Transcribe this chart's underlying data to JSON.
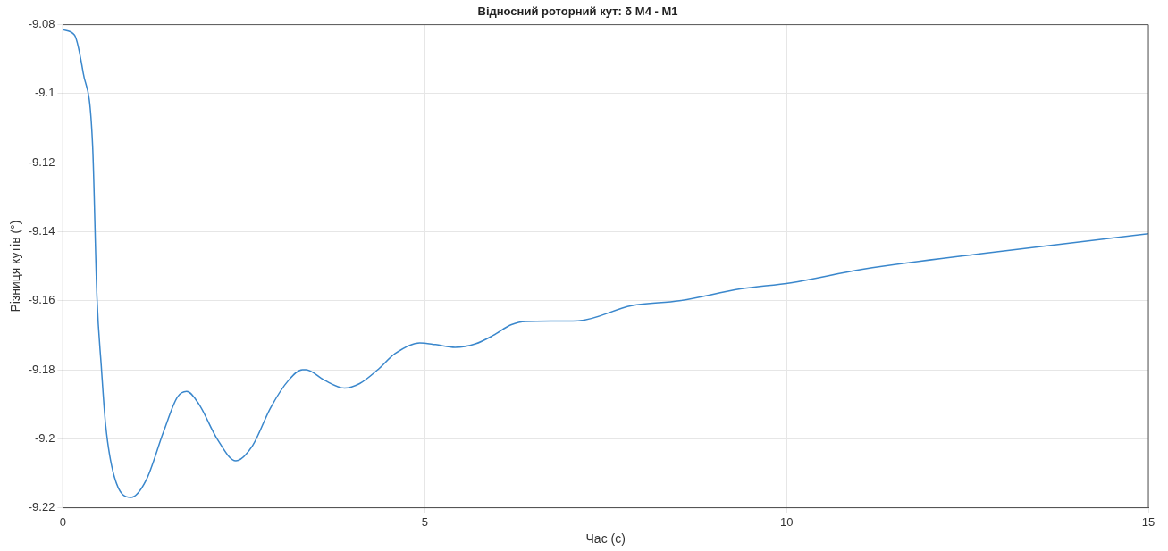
{
  "chart_data": {
    "type": "line",
    "title": "Відносний роторний кут: δ M4 - M1",
    "xlabel": "Час (с)",
    "ylabel": "Різниця кутів (°)",
    "x": [
      0,
      0.16,
      0.28,
      0.41,
      0.47,
      0.53,
      0.59,
      0.71,
      0.94,
      1.15,
      1.39,
      1.58,
      1.71,
      1.88,
      2.13,
      2.39,
      2.62,
      2.87,
      3.12,
      3.31,
      3.36,
      3.61,
      3.89,
      4.1,
      4.35,
      4.59,
      4.93,
      5.15,
      5.42,
      5.7,
      5.95,
      6.19,
      6.4,
      7.12,
      7.86,
      8.52,
      9.36,
      10.06,
      11.05,
      12.72,
      15
    ],
    "series": [
      {
        "color": "#3a87cc",
        "values": [
          -9.0815,
          -9.083,
          -9.094,
          -9.115,
          -9.159,
          -9.179,
          -9.196,
          -9.211,
          -9.217,
          -9.212,
          -9.198,
          -9.188,
          -9.1863,
          -9.19,
          -9.2,
          -9.2064,
          -9.202,
          -9.191,
          -9.183,
          -9.18,
          -9.18,
          -9.183,
          -9.1853,
          -9.184,
          -9.18,
          -9.1753,
          -9.1722,
          -9.1727,
          -9.1735,
          -9.1725,
          -9.17,
          -9.167,
          -9.166,
          -9.1658,
          -9.1614,
          -9.16,
          -9.1566,
          -9.1548,
          -9.1509,
          -9.1463,
          -9.1406
        ]
      }
    ],
    "xlim": [
      0,
      15
    ],
    "xticks": [
      0,
      5,
      10,
      15
    ],
    "ylim": [
      -9.22,
      -9.08
    ],
    "yticks": [
      -9.22,
      -9.2,
      -9.18,
      -9.16,
      -9.14,
      -9.12,
      {
        "value": -9.1,
        "label": "-9.1"
      },
      -9.08
    ],
    "grid": true,
    "legend": false,
    "marker": "none",
    "line_style": "solid"
  }
}
